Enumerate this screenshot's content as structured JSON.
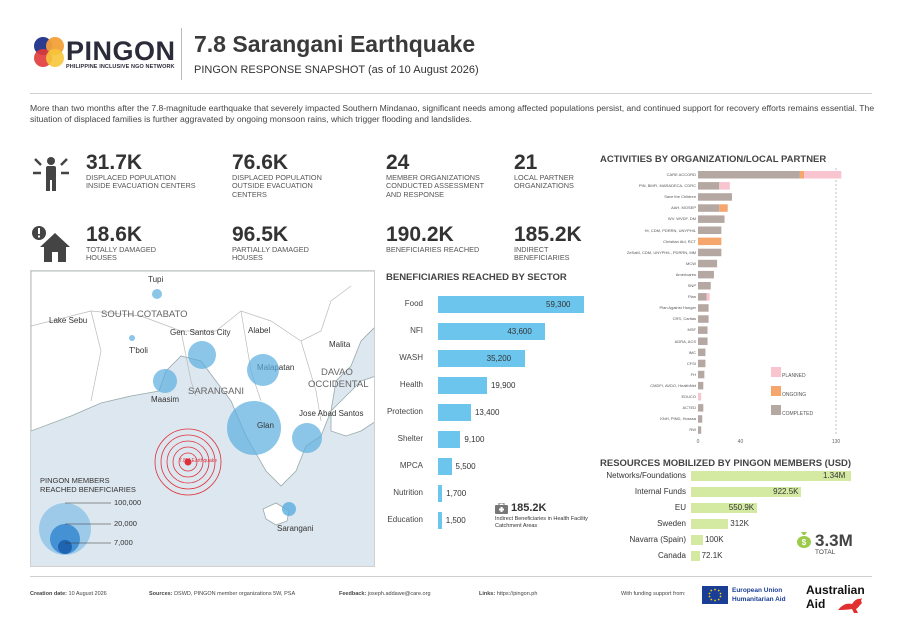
{
  "logo": {
    "name": "PINGON",
    "tagline": "PHILIPPINE INCLUSIVE NGO NETWORK"
  },
  "header": {
    "title": "7.8 Sarangani Earthquake",
    "subtitle": "PINGON RESPONSE SNAPSHOT (as of 10 August 2026)"
  },
  "intro": "More than two months after the 7.8-magnitude earthquake that severely impacted Southern Mindanao, significant needs among affected populations persist, and continued support for recovery efforts remains essential. The situation of displaced families is further aggravated by ongoing monsoon rains, which trigger flooding and landslides.",
  "stats": {
    "displaced_inside": {
      "value": "31.7K",
      "label": "DISPLACED POPULATION INSIDE EVACUATION CENTERS"
    },
    "displaced_outside": {
      "value": "76.6K",
      "label": "DISPLACED POPULATION OUTSIDE EVACUATION CENTERS"
    },
    "totally_damaged": {
      "value": "18.6K",
      "label": "TOTALLY DAMAGED HOUSES"
    },
    "partially_damaged": {
      "value": "96.5K",
      "label": "PARTIALLY DAMAGED HOUSES"
    },
    "member_orgs": {
      "value": "24",
      "label": "MEMBER ORGANIZATIONS CONDUCTED ASSESSMENT AND RESPONSE"
    },
    "local_partners": {
      "value": "21",
      "label": "LOCAL PARTNER ORGANIZATIONS"
    },
    "beneficiaries": {
      "value": "190.2K",
      "label": "BENEFICIARIES REACHED"
    },
    "indirect": {
      "value": "185.2K",
      "label": "INDIRECT BENEFICIARIES"
    }
  },
  "map": {
    "labels": {
      "tupi": "Tupi",
      "lake_sebu": "Lake Sebu",
      "south_cotabato": "SOUTH COTABATO",
      "tboli": "T'boli",
      "gensan": "Gen. Santos City",
      "alabel": "Alabel",
      "malita": "Malita",
      "malapatan": "Malapatan",
      "davao_occ_1": "DAVAO",
      "davao_occ_2": "OCCIDENTAL",
      "sarangani_prov": "SARANGANI",
      "maasim": "Maasim",
      "glan": "Glan",
      "jose_abad": "Jose Abad Santos",
      "epicenter": "7.8M Earthquake",
      "sarangani_island": "Sarangani"
    },
    "legend_title_1": "PINGON MEMBERS",
    "legend_title_2": "REACHED BENEFICIARIES",
    "legend_values": [
      "100,000",
      "20,000",
      "7,000"
    ],
    "colors": {
      "bubble": "#5aaee0",
      "epicenter": "#e0303a"
    }
  },
  "sector_title": "BENEFICIARIES REACHED BY SECTOR",
  "sector_data": [
    {
      "label": "Food",
      "value": 59300,
      "display": "59,300"
    },
    {
      "label": "NFI",
      "value": 43600,
      "display": "43,600"
    },
    {
      "label": "WASH",
      "value": 35200,
      "display": "35,200"
    },
    {
      "label": "Health",
      "value": 19900,
      "display": "19,900"
    },
    {
      "label": "Protection",
      "value": 13400,
      "display": "13,400"
    },
    {
      "label": "Shelter",
      "value": 9100,
      "display": "9,100"
    },
    {
      "label": "MPCA",
      "value": 5500,
      "display": "5,500"
    },
    {
      "label": "Nutrition",
      "value": 1700,
      "display": "1,700"
    },
    {
      "label": "Education",
      "value": 1500,
      "display": "1,500"
    }
  ],
  "indirect_note": {
    "value": "185.2K",
    "text": "Indirect Beneficiaries in Health Facility Catchment Areas"
  },
  "activities": {
    "title": "ACTIVITIES BY ORGANIZATION/LOCAL PARTNER",
    "colors": {
      "completed": "#b5a8a2",
      "ongoing": "#f5a66c",
      "planned": "#f8c4cf"
    },
    "legend": {
      "planned": "PLANNED",
      "ongoing": "ONGOING",
      "completed": "COMPLETED"
    },
    "ticks": [
      0,
      40,
      130
    ],
    "xmax": 130,
    "rows": [
      {
        "org": "CARE ACCORD",
        "completed": 96,
        "ongoing": 4,
        "planned": 35
      },
      {
        "org": "PIN, BMFI, MARADECA, CDRC",
        "completed": 20,
        "ongoing": 0,
        "planned": 10
      },
      {
        "org": "Save the Children",
        "completed": 32,
        "ongoing": 0,
        "planned": 0
      },
      {
        "org": "AAH, MOSEP",
        "completed": 20,
        "ongoing": 8,
        "planned": 0
      },
      {
        "org": "WV, WVDF, DM",
        "completed": 25,
        "ongoing": 0,
        "planned": 0
      },
      {
        "org": "HI, CDM, PDRRN, UNYPHIL",
        "completed": 22,
        "ongoing": 0,
        "planned": 0
      },
      {
        "org": "Christian Aid, RCT",
        "completed": 0,
        "ongoing": 22,
        "planned": 0
      },
      {
        "org": "ZeSaM, CDM, UNYPHIL, PDRRN, MM",
        "completed": 22,
        "ongoing": 0,
        "planned": 0
      },
      {
        "org": "MCW",
        "completed": 18,
        "ongoing": 0,
        "planned": 0
      },
      {
        "org": "Americares",
        "completed": 15,
        "ongoing": 0,
        "planned": 0
      },
      {
        "org": "SNP",
        "completed": 12,
        "ongoing": 0,
        "planned": 0
      },
      {
        "org": "Plan",
        "completed": 8,
        "ongoing": 0,
        "planned": 3
      },
      {
        "org": "Plan Against Hunger",
        "completed": 10,
        "ongoing": 0,
        "planned": 0
      },
      {
        "org": "CRS, Caritas",
        "completed": 10,
        "ongoing": 0,
        "planned": 0
      },
      {
        "org": "MSF",
        "completed": 9,
        "ongoing": 0,
        "planned": 0
      },
      {
        "org": "ADRA, ACS",
        "completed": 9,
        "ongoing": 0,
        "planned": 0
      },
      {
        "org": "IMC",
        "completed": 7,
        "ongoing": 0,
        "planned": 0
      },
      {
        "org": "CFSI",
        "completed": 7,
        "ongoing": 0,
        "planned": 0
      },
      {
        "org": "FH",
        "completed": 6,
        "ongoing": 0,
        "planned": 0
      },
      {
        "org": "CMDFI, AVDO, HealthNet",
        "completed": 5,
        "ongoing": 0,
        "planned": 0
      },
      {
        "org": "EDUCO",
        "completed": 0,
        "ongoing": 0,
        "planned": 3
      },
      {
        "org": "ACTED",
        "completed": 5,
        "ongoing": 0,
        "planned": 0
      },
      {
        "org": "KNH, PIND, Hosssa",
        "completed": 4,
        "ongoing": 0,
        "planned": 0
      },
      {
        "org": "RW",
        "completed": 3,
        "ongoing": 0,
        "planned": 0
      }
    ]
  },
  "resources": {
    "title": "RESOURCES MOBILIZED BY PINGON MEMBERS (USD)",
    "rows": [
      {
        "label": "Networks/Foundations",
        "value": 1.34,
        "display": "1.34M"
      },
      {
        "label": "Internal Funds",
        "value": 0.9225,
        "display": "922.5K"
      },
      {
        "label": "EU",
        "value": 0.5509,
        "display": "550.9K"
      },
      {
        "label": "Sweden",
        "value": 0.312,
        "display": "312K"
      },
      {
        "label": "Navarra (Spain)",
        "value": 0.1,
        "display": "100K"
      },
      {
        "label": "Canada",
        "value": 0.0721,
        "display": "72.1K"
      }
    ],
    "total_value": "3.3M",
    "total_label": "TOTAL"
  },
  "footer": {
    "creation_label": "Creation date:",
    "creation_value": "10 August 2026",
    "sources_label": "Sources:",
    "sources_value": "DSWD, PINGON member organizations 5W, PSA",
    "feedback_label": "Feedback:",
    "feedback_value": "joseph.addawe@care.org",
    "links_label": "Links:",
    "links_value": "https://pingon.ph",
    "funding_text": "With funding support from:",
    "eu_1": "European Union",
    "eu_2": "Humanitarian Aid",
    "aus_1": "Australian",
    "aus_2": "Aid"
  }
}
